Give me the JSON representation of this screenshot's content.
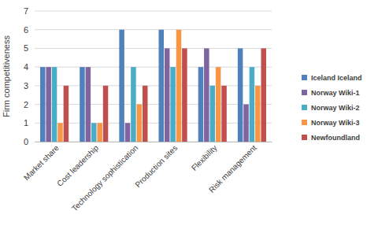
{
  "chart_data": {
    "type": "bar",
    "y_label": "Firm competitiveness",
    "categories": [
      "Market share",
      "Cost leadership",
      "Technology sophistication",
      "Production sites",
      "Flexibility",
      "Risk management"
    ],
    "series": [
      {
        "name": "Iceland Iceland",
        "color": "#4f81bd",
        "values": [
          4,
          4,
          6,
          6,
          4,
          5
        ]
      },
      {
        "name": "Norway Wiki-1",
        "color": "#8064a2",
        "values": [
          4,
          4,
          1,
          5,
          5,
          2
        ]
      },
      {
        "name": "Norway Wiki-2",
        "color": "#4bacc6",
        "values": [
          4,
          1,
          4,
          4,
          3,
          4
        ]
      },
      {
        "name": "Norway Wiki-3",
        "color": "#f79646",
        "values": [
          1,
          1,
          2,
          6,
          4,
          3
        ]
      },
      {
        "name": "Newfoundland",
        "color": "#c0504d",
        "values": [
          3,
          3,
          3,
          5,
          3,
          5
        ]
      }
    ],
    "ylim": [
      0,
      7
    ],
    "yticks": [
      0,
      1,
      2,
      3,
      4,
      5,
      6,
      7
    ],
    "grid": true,
    "legend": "right"
  }
}
